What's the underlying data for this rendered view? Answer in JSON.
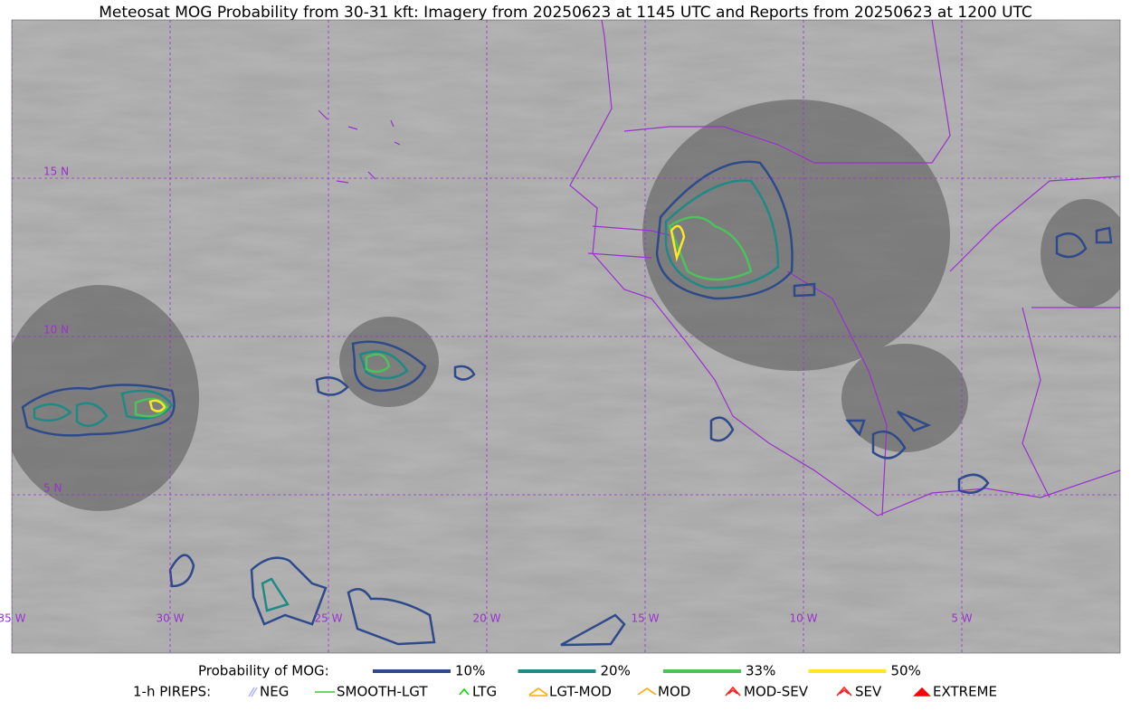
{
  "title": "Meteosat MOG Probability from 30-31 kft: Imagery from 20250623 at 1145 UTC and Reports from 20250623 at 1200 UTC",
  "map": {
    "lat_labels": [
      "15 N",
      "10 N",
      "5 N"
    ],
    "lon_labels": [
      "35 W",
      "30 W",
      "25 W",
      "20 W",
      "15 W",
      "10 W",
      "5 W"
    ]
  },
  "legend": {
    "probability": {
      "label": "Probability of MOG:",
      "levels": [
        {
          "label": "10%",
          "color": "#2e4a8b"
        },
        {
          "label": "20%",
          "color": "#1f8a85"
        },
        {
          "label": "33%",
          "color": "#4cc25a"
        },
        {
          "label": "50%",
          "color": "#fde725"
        }
      ]
    },
    "pireps": {
      "label": "1-h PIREPS:",
      "items": [
        {
          "label": "NEG",
          "color": "#b4b4ff"
        },
        {
          "label": "SMOOTH-LGT",
          "color": "#33cc33"
        },
        {
          "label": "LTG",
          "color": "#00dd00"
        },
        {
          "label": "LGT-MOD",
          "color": "#ffaa00"
        },
        {
          "label": "MOD",
          "color": "#ffaa00"
        },
        {
          "label": "MOD-SEV",
          "color": "#ff2020"
        },
        {
          "label": "SEV",
          "color": "#ff2020"
        },
        {
          "label": "EXTREME",
          "color": "#ff0000"
        }
      ]
    }
  }
}
